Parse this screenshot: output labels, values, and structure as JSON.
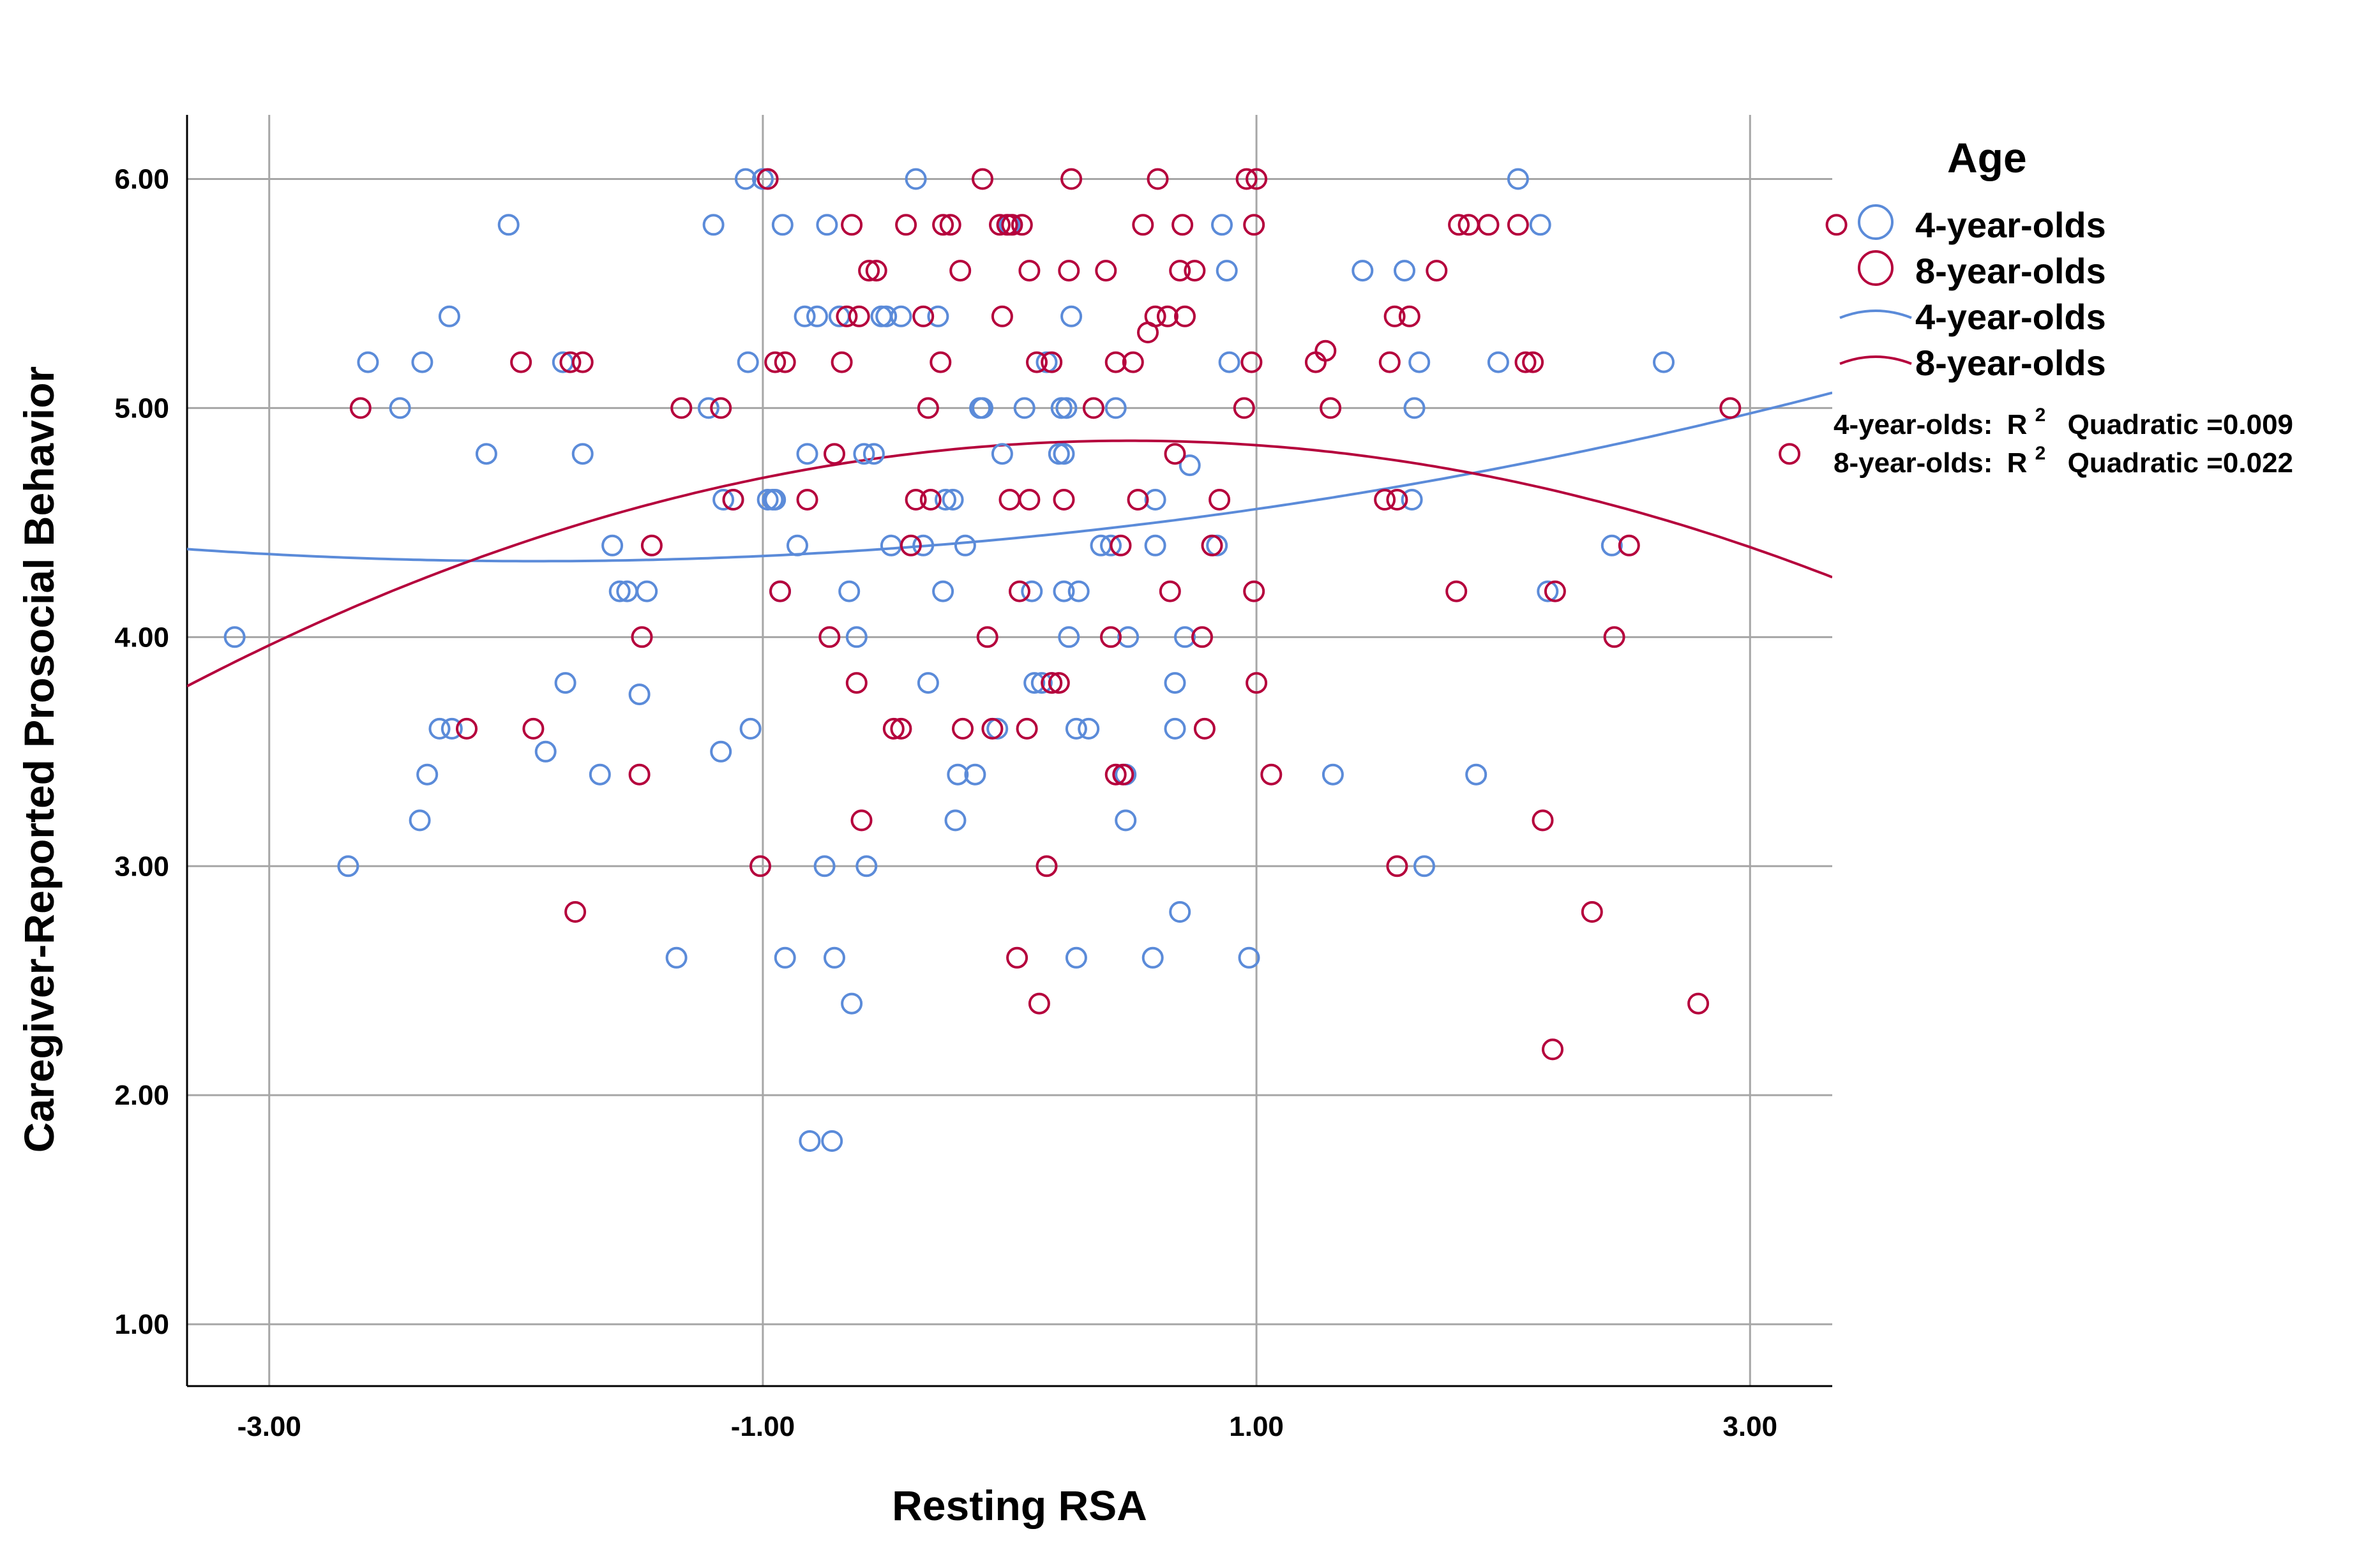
{
  "chart_data": {
    "type": "scatter",
    "title": "",
    "xlabel": "Resting RSA",
    "ylabel": "Caregiver-Reported Prosocial Behavior",
    "xlim": [
      -3.333,
      3.333
    ],
    "ylim": [
      0.73,
      6.28
    ],
    "x_ticks": [
      -3,
      -1,
      1,
      3
    ],
    "x_tick_labels": [
      "-3.00",
      "-1.00",
      "1.00",
      "3.00"
    ],
    "y_ticks": [
      1,
      2,
      3,
      4,
      5,
      6
    ],
    "y_tick_labels": [
      "1.00",
      "2.00",
      "3.00",
      "4.00",
      "5.00",
      "6.00"
    ],
    "grid": true,
    "legend": {
      "title": "Age",
      "position": "right",
      "entries": [
        {
          "label": "4-year-olds",
          "kind": "marker",
          "color": "#5B8BD9"
        },
        {
          "label": "8-year-olds",
          "kind": "marker",
          "color": "#B5003C"
        },
        {
          "label": "4-year-olds",
          "kind": "line",
          "color": "#5B8BD9"
        },
        {
          "label": "8-year-olds",
          "kind": "line",
          "color": "#B5003C"
        }
      ]
    },
    "annotations": [
      {
        "group": "4-year-olds:",
        "r_label": "R",
        "sup": "2",
        "fit_label": "Quadratic =0.009"
      },
      {
        "group": "8-year-olds:",
        "r_label": "R",
        "sup": "2",
        "fit_label": "Quadratic =0.022"
      }
    ],
    "series": [
      {
        "name": "4-year-olds",
        "color": "#5B8BD9",
        "fit": {
          "type": "quadratic",
          "r2": 0.009,
          "a": 0.0266,
          "b": 0.1024,
          "c": 4.43
        },
        "points": [
          [
            -3.14,
            4.0
          ],
          [
            -2.68,
            3.0
          ],
          [
            -2.6,
            5.2
          ],
          [
            -2.47,
            5.0
          ],
          [
            -2.38,
            5.2
          ],
          [
            -2.36,
            3.4
          ],
          [
            -2.39,
            3.2
          ],
          [
            -2.31,
            3.6
          ],
          [
            -2.27,
            5.4
          ],
          [
            -2.26,
            3.6
          ],
          [
            -2.12,
            4.8
          ],
          [
            -2.03,
            5.8
          ],
          [
            -1.88,
            3.5
          ],
          [
            -1.81,
            5.2
          ],
          [
            -1.8,
            3.8
          ],
          [
            -1.73,
            4.8
          ],
          [
            -1.66,
            3.4
          ],
          [
            -1.61,
            4.4
          ],
          [
            -1.58,
            4.2
          ],
          [
            -1.55,
            4.2
          ],
          [
            -1.5,
            3.75
          ],
          [
            -1.47,
            4.2
          ],
          [
            -1.35,
            2.6
          ],
          [
            -1.22,
            5.0
          ],
          [
            -1.2,
            5.8
          ],
          [
            -1.17,
            3.5
          ],
          [
            -1.16,
            4.6
          ],
          [
            -1.12,
            4.6
          ],
          [
            -1.07,
            6.0
          ],
          [
            -1.06,
            5.2
          ],
          [
            -1.05,
            3.6
          ],
          [
            -1.0,
            6.0
          ],
          [
            -0.98,
            4.6
          ],
          [
            -0.96,
            4.6
          ],
          [
            -0.95,
            4.6
          ],
          [
            -0.93,
            4.2
          ],
          [
            -0.92,
            5.8
          ],
          [
            -0.91,
            2.6
          ],
          [
            -0.86,
            4.4
          ],
          [
            -0.83,
            5.4
          ],
          [
            -0.82,
            4.8
          ],
          [
            -0.81,
            1.8
          ],
          [
            -0.78,
            5.4
          ],
          [
            -0.75,
            3.0
          ],
          [
            -0.74,
            5.8
          ],
          [
            -0.72,
            1.8
          ],
          [
            -0.71,
            2.6
          ],
          [
            -0.69,
            5.4
          ],
          [
            -0.65,
            4.2
          ],
          [
            -0.64,
            2.4
          ],
          [
            -0.62,
            4.0
          ],
          [
            -0.59,
            4.8
          ],
          [
            -0.58,
            3.0
          ],
          [
            -0.55,
            4.8
          ],
          [
            -0.52,
            5.4
          ],
          [
            -0.5,
            5.4
          ],
          [
            -0.48,
            4.4
          ],
          [
            -0.44,
            5.4
          ],
          [
            -0.38,
            6.0
          ],
          [
            -0.35,
            4.4
          ],
          [
            -0.33,
            3.8
          ],
          [
            -0.29,
            5.4
          ],
          [
            -0.27,
            4.2
          ],
          [
            -0.26,
            4.6
          ],
          [
            -0.23,
            4.6
          ],
          [
            -0.22,
            3.2
          ],
          [
            -0.21,
            3.4
          ],
          [
            -0.18,
            4.4
          ],
          [
            -0.14,
            3.4
          ],
          [
            -0.12,
            5.0
          ],
          [
            -0.11,
            5.0
          ],
          [
            -0.05,
            3.6
          ],
          [
            -0.03,
            4.8
          ],
          [
            0.0,
            5.8
          ],
          [
            0.06,
            5.0
          ],
          [
            0.09,
            4.2
          ],
          [
            0.1,
            3.8
          ],
          [
            0.13,
            3.8
          ],
          [
            0.15,
            5.2
          ],
          [
            0.17,
            3.8
          ],
          [
            0.2,
            4.8
          ],
          [
            0.21,
            5.0
          ],
          [
            0.22,
            4.2
          ],
          [
            0.22,
            4.8
          ],
          [
            0.23,
            5.0
          ],
          [
            0.24,
            4.0
          ],
          [
            0.25,
            5.4
          ],
          [
            0.27,
            3.6
          ],
          [
            0.27,
            2.6
          ],
          [
            0.28,
            4.2
          ],
          [
            0.32,
            3.6
          ],
          [
            0.37,
            4.4
          ],
          [
            0.41,
            4.4
          ],
          [
            0.43,
            5.0
          ],
          [
            0.47,
            3.4
          ],
          [
            0.47,
            3.2
          ],
          [
            0.48,
            4.0
          ],
          [
            0.58,
            2.6
          ],
          [
            0.59,
            4.4
          ],
          [
            0.59,
            4.6
          ],
          [
            0.67,
            3.8
          ],
          [
            0.67,
            3.6
          ],
          [
            0.69,
            2.8
          ],
          [
            0.71,
            4.0
          ],
          [
            0.73,
            4.75
          ],
          [
            0.84,
            4.4
          ],
          [
            0.86,
            5.8
          ],
          [
            0.88,
            5.6
          ],
          [
            0.89,
            5.2
          ],
          [
            0.97,
            2.6
          ],
          [
            1.31,
            3.4
          ],
          [
            1.43,
            5.6
          ],
          [
            1.6,
            5.6
          ],
          [
            1.63,
            4.6
          ],
          [
            1.64,
            5.0
          ],
          [
            1.66,
            5.2
          ],
          [
            1.68,
            3.0
          ],
          [
            1.89,
            3.4
          ],
          [
            1.98,
            5.2
          ],
          [
            2.06,
            6.0
          ],
          [
            2.15,
            5.8
          ],
          [
            2.18,
            4.2
          ],
          [
            2.44,
            4.4
          ],
          [
            2.65,
            5.2
          ]
        ]
      },
      {
        "name": "8-year-olds",
        "color": "#B5003C",
        "fit": {
          "type": "quadratic",
          "r2": 0.022,
          "a": -0.0735,
          "b": 0.0714,
          "c": 4.84
        },
        "points": [
          [
            -2.63,
            5.0
          ],
          [
            -2.2,
            3.6
          ],
          [
            -1.98,
            5.2
          ],
          [
            -1.93,
            3.6
          ],
          [
            -1.78,
            5.2
          ],
          [
            -1.76,
            2.8
          ],
          [
            -1.73,
            5.2
          ],
          [
            -1.5,
            3.4
          ],
          [
            -1.49,
            4.0
          ],
          [
            -1.45,
            4.4
          ],
          [
            -1.33,
            5.0
          ],
          [
            -1.17,
            5.0
          ],
          [
            -1.12,
            4.6
          ],
          [
            -1.01,
            3.0
          ],
          [
            -0.98,
            6.0
          ],
          [
            -0.95,
            5.2
          ],
          [
            -0.93,
            4.2
          ],
          [
            -0.91,
            5.2
          ],
          [
            -0.82,
            4.6
          ],
          [
            -0.73,
            4.0
          ],
          [
            -0.71,
            4.8
          ],
          [
            -0.68,
            5.2
          ],
          [
            -0.66,
            5.4
          ],
          [
            -0.64,
            5.8
          ],
          [
            -0.62,
            3.8
          ],
          [
            -0.61,
            5.4
          ],
          [
            -0.6,
            3.2
          ],
          [
            -0.57,
            5.6
          ],
          [
            -0.54,
            5.6
          ],
          [
            -0.47,
            3.6
          ],
          [
            -0.44,
            3.6
          ],
          [
            -0.42,
            5.8
          ],
          [
            -0.4,
            4.4
          ],
          [
            -0.38,
            4.6
          ],
          [
            -0.35,
            5.4
          ],
          [
            -0.33,
            5.0
          ],
          [
            -0.32,
            4.6
          ],
          [
            -0.28,
            5.2
          ],
          [
            -0.27,
            5.8
          ],
          [
            -0.24,
            5.8
          ],
          [
            -0.2,
            5.6
          ],
          [
            -0.19,
            3.6
          ],
          [
            -0.11,
            6.0
          ],
          [
            -0.09,
            4.0
          ],
          [
            -0.07,
            3.6
          ],
          [
            -0.04,
            5.8
          ],
          [
            -0.03,
            5.4
          ],
          [
            -0.01,
            5.8
          ],
          [
            0.0,
            4.6
          ],
          [
            0.01,
            5.8
          ],
          [
            0.03,
            2.6
          ],
          [
            0.04,
            4.2
          ],
          [
            0.05,
            5.8
          ],
          [
            0.07,
            3.6
          ],
          [
            0.08,
            5.6
          ],
          [
            0.08,
            4.6
          ],
          [
            0.11,
            5.2
          ],
          [
            0.12,
            2.4
          ],
          [
            0.15,
            3.0
          ],
          [
            0.17,
            5.2
          ],
          [
            0.17,
            3.8
          ],
          [
            0.2,
            3.8
          ],
          [
            0.22,
            4.6
          ],
          [
            0.24,
            5.6
          ],
          [
            0.25,
            6.0
          ],
          [
            0.34,
            5.0
          ],
          [
            0.39,
            5.6
          ],
          [
            0.41,
            4.0
          ],
          [
            0.43,
            3.4
          ],
          [
            0.43,
            5.2
          ],
          [
            0.45,
            4.4
          ],
          [
            0.46,
            3.4
          ],
          [
            0.5,
            5.2
          ],
          [
            0.52,
            4.6
          ],
          [
            0.54,
            5.8
          ],
          [
            0.56,
            5.33
          ],
          [
            0.59,
            5.4
          ],
          [
            0.6,
            6.0
          ],
          [
            0.64,
            5.4
          ],
          [
            0.65,
            4.2
          ],
          [
            0.67,
            4.8
          ],
          [
            0.69,
            5.6
          ],
          [
            0.7,
            5.8
          ],
          [
            0.71,
            5.4
          ],
          [
            0.75,
            5.6
          ],
          [
            0.78,
            4.0
          ],
          [
            0.79,
            3.6
          ],
          [
            0.82,
            4.4
          ],
          [
            0.85,
            4.6
          ],
          [
            0.95,
            5.0
          ],
          [
            0.96,
            6.0
          ],
          [
            0.98,
            5.2
          ],
          [
            0.99,
            4.2
          ],
          [
            0.99,
            5.8
          ],
          [
            1.0,
            6.0
          ],
          [
            1.0,
            3.8
          ],
          [
            1.06,
            3.4
          ],
          [
            1.24,
            5.2
          ],
          [
            1.28,
            5.25
          ],
          [
            1.3,
            5.0
          ],
          [
            1.52,
            4.6
          ],
          [
            1.54,
            5.2
          ],
          [
            1.56,
            5.4
          ],
          [
            1.57,
            4.6
          ],
          [
            1.57,
            3.0
          ],
          [
            1.62,
            5.4
          ],
          [
            1.73,
            5.6
          ],
          [
            1.81,
            4.2
          ],
          [
            1.82,
            5.8
          ],
          [
            1.86,
            5.8
          ],
          [
            1.94,
            5.8
          ],
          [
            2.06,
            5.8
          ],
          [
            2.09,
            5.2
          ],
          [
            2.12,
            5.2
          ],
          [
            2.16,
            3.2
          ],
          [
            2.2,
            2.2
          ],
          [
            2.21,
            4.2
          ],
          [
            2.36,
            2.8
          ],
          [
            2.45,
            4.0
          ],
          [
            2.51,
            4.4
          ],
          [
            2.79,
            2.4
          ],
          [
            2.92,
            5.0
          ],
          [
            3.16,
            4.8
          ],
          [
            3.35,
            5.8
          ]
        ]
      }
    ]
  }
}
